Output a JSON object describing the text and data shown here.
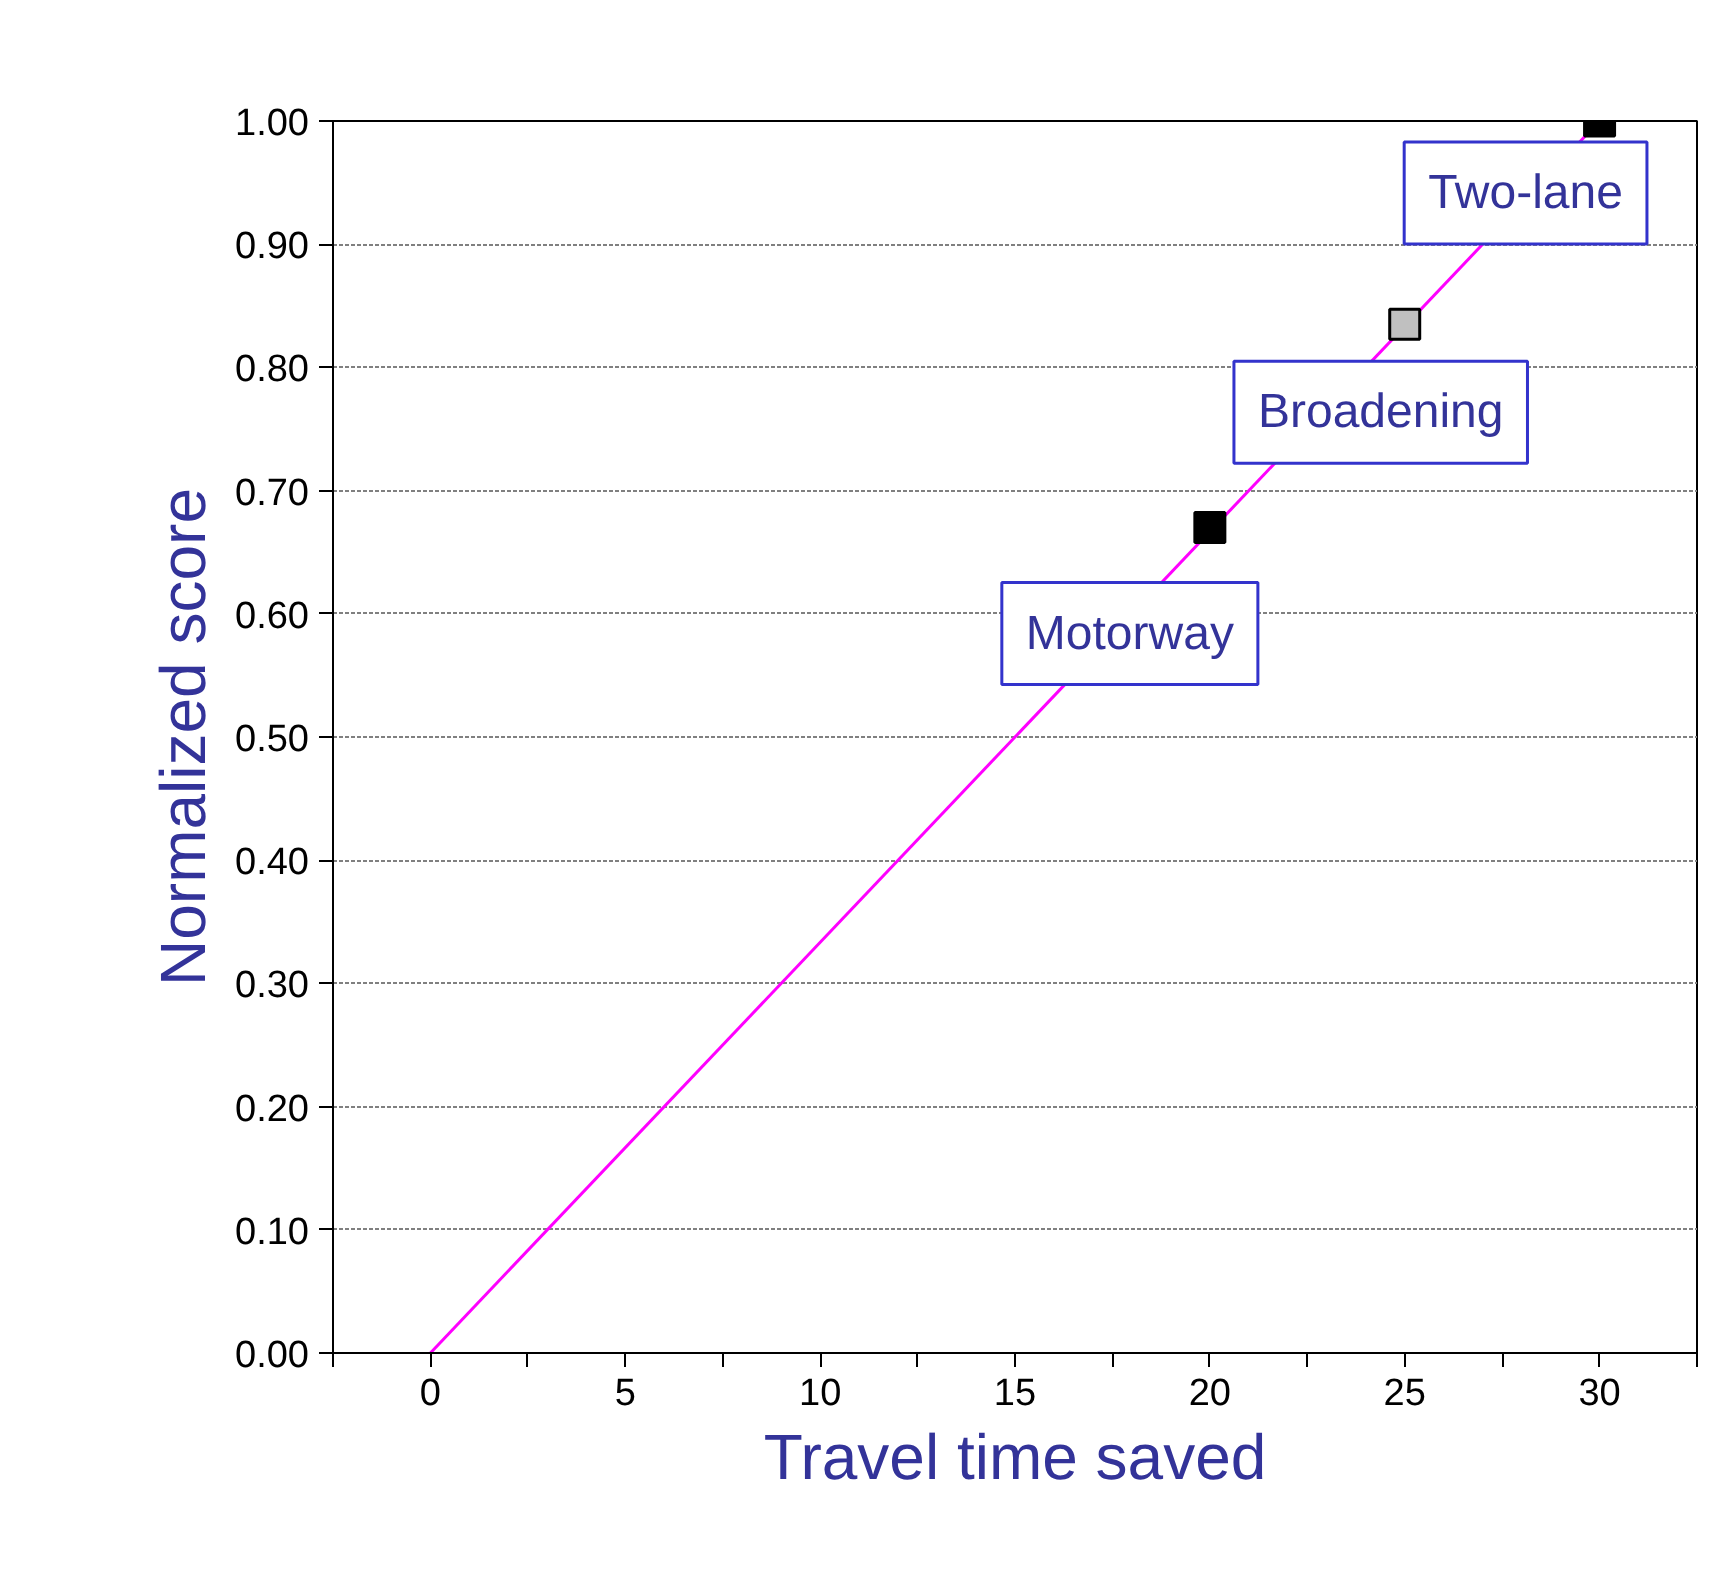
{
  "chart_data": {
    "type": "scatter",
    "xlabel": "Travel time saved",
    "ylabel": "Normalized score",
    "xlim": [
      -2.5,
      32.5
    ],
    "ylim": [
      0,
      1
    ],
    "xticks": [
      {
        "value": -2.5,
        "label": null
      },
      0,
      {
        "value": 2.5,
        "label": null
      },
      5,
      {
        "value": 7.5,
        "label": null
      },
      10,
      {
        "value": 12.5,
        "label": null
      },
      15,
      {
        "value": 17.5,
        "label": null
      },
      20,
      {
        "value": 22.5,
        "label": null
      },
      25,
      {
        "value": 27.5,
        "label": null
      },
      30,
      {
        "value": 32.5,
        "label": null
      }
    ],
    "yticks": [
      {
        "value": 0,
        "label": "0.00"
      },
      {
        "value": 0.1,
        "label": "0.10"
      },
      {
        "value": 0.2,
        "label": "0.20"
      },
      {
        "value": 0.3,
        "label": "0.30"
      },
      {
        "value": 0.4,
        "label": "0.40"
      },
      {
        "value": 0.5,
        "label": "0.50"
      },
      {
        "value": 0.6,
        "label": "0.60"
      },
      {
        "value": 0.7,
        "label": "0.70"
      },
      {
        "value": 0.8,
        "label": "0.80"
      },
      {
        "value": 0.9,
        "label": "0.90"
      },
      {
        "value": 1,
        "label": "1.00"
      }
    ],
    "grid": "y",
    "series": [
      {
        "type": "line",
        "x": [
          0,
          30
        ],
        "values": [
          0,
          1
        ],
        "color": "#ff00ff"
      },
      {
        "marker": "square",
        "x": [
          20,
          25,
          30
        ],
        "values": [
          0.67,
          0.835,
          1.0
        ],
        "colors": [
          "#000000",
          "#c0c0c0",
          "#000000"
        ]
      }
    ],
    "annotations": [
      {
        "text": "Motorway",
        "x": 20,
        "y": 0.67
      },
      {
        "text": "Broadening",
        "x": 25,
        "y": 0.835
      },
      {
        "text": "Two-lane",
        "x": 30,
        "y": 1.0
      }
    ]
  }
}
